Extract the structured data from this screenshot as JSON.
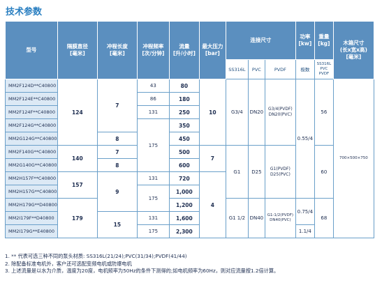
{
  "title": "技术参数",
  "headers": {
    "model": "型号",
    "diameter": "隔膜直径\n[毫米]",
    "stroke_len": "冲程长度\n[毫米]",
    "stroke_freq": "冲程频率\n[次/分钟]",
    "flow": "流量\n[升/小时]",
    "pressure": "最大压力\n[bar]",
    "conn": "连接尺寸",
    "conn_ss": "SS316L",
    "conn_pvc": "PVC",
    "conn_pvdf": "PVDF",
    "power": "功率\n[kw]",
    "power_sub": "极数",
    "weight": "重量\n[kg]",
    "weight_sub": "SS316L\nPVC\nPVDF",
    "box": "木箱尺寸\n(长x宽x高)\n[毫米]"
  },
  "models": [
    "MM2F124D**C40800",
    "MM2F124E**C40800",
    "MM2F124F**C40800",
    "MM2F124G**C40800",
    "MM2G124G**C40800",
    "MM2F140G**C40800",
    "MM2G140G**C40800",
    "MM2H157F**C40800",
    "MM2H157G**C40800",
    "MM2H179G**D40800",
    "MM2I179F**D40800",
    "MM2I179G**E40800"
  ],
  "diameter": [
    "124",
    "140",
    "157",
    "179"
  ],
  "stroke_length": [
    "7",
    "8",
    "7",
    "8",
    "9",
    "15"
  ],
  "stroke_freq": [
    "43",
    "86",
    "131",
    "175",
    "131",
    "175",
    "131",
    "175"
  ],
  "flow": [
    "80",
    "180",
    "250",
    "350",
    "450",
    "500",
    "600",
    "720",
    "1,000",
    "1,200",
    "1,600",
    "2,300"
  ],
  "pressure": [
    "10",
    "7",
    "4"
  ],
  "conn_ss": [
    "G3/4",
    "G1",
    "G1 1/2"
  ],
  "conn_pvc": [
    "DN20",
    "D25",
    "DN40"
  ],
  "conn_pvdf": [
    "G3/4(PVDF)\nDN20(PVC)",
    "G1(PVDF)\nD25(PVC)",
    "G1-1/2(PVDF)\nDN40(PVC)"
  ],
  "power": [
    "0.55/4",
    "0.75/4",
    "1.1/4"
  ],
  "weight": [
    "56",
    "60",
    "68"
  ],
  "box": "700×500×750",
  "notes": [
    "1. ** 代表可选三种不同的泵头材质: SS316L(21/24);PVC(31/34);PVDF(41/44)",
    "2. 除配备标准电机外，客户还可选配变频电机或防爆电机",
    "3. 上述流量是以水为介质，温度为20度，电机频率为50Hz的条件下测得的;如电机频率为60Hz，则对应流量按1.2倍计算。"
  ]
}
